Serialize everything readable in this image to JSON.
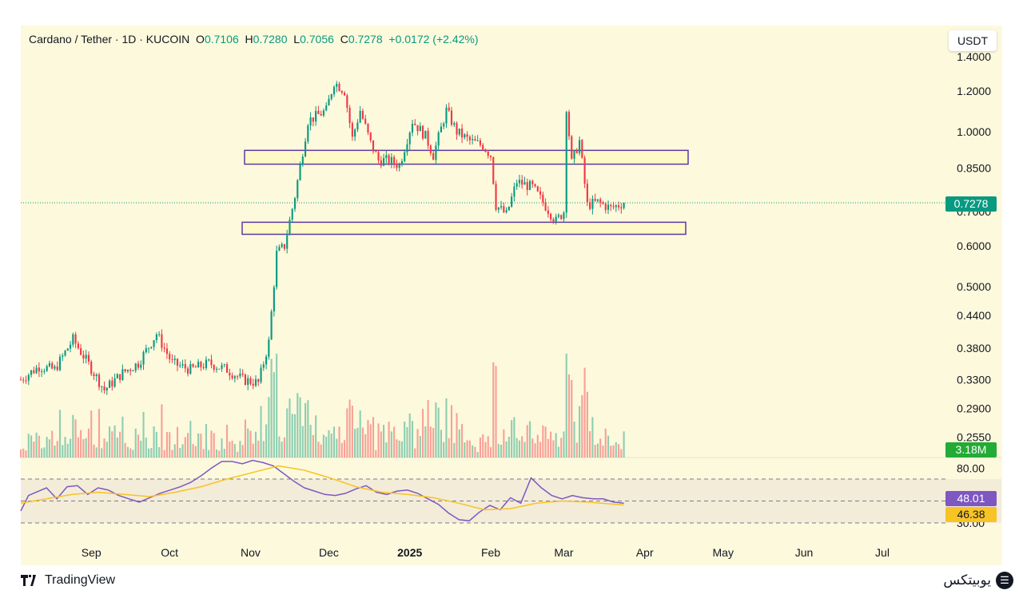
{
  "header": {
    "pair": "Cardano / Tether · 1D · KUCOIN",
    "o_label": "O",
    "o_value": "0.7106",
    "h_label": "H",
    "h_value": "0.7280",
    "l_label": "L",
    "l_value": "0.7056",
    "c_label": "C",
    "c_value": "0.7278",
    "change": "+0.0172 (+2.42%)"
  },
  "unit_button": "USDT",
  "price_label": "0.7278",
  "volume_label": "3.18M",
  "rsi_labels": {
    "rsi": "48.01",
    "ma": "46.38"
  },
  "footer": {
    "tradingview": "TradingView",
    "brand": "یوبیتکس"
  },
  "colors": {
    "up": "#089981",
    "down": "#f23645",
    "rsi": "#7e57c2",
    "rsi_ma": "#f7c325",
    "zone_border": "#5b3aa6",
    "volume_tag": "#22ab35"
  },
  "chart_data": [
    {
      "type": "candlestick",
      "scale": "log",
      "yticks": [
        "1.4000",
        "1.2000",
        "1.0000",
        "0.8500",
        "0.7000",
        "0.6000",
        "0.5000",
        "0.4400",
        "0.3800",
        "0.3300",
        "0.2900",
        "0.2550"
      ],
      "xticks": [
        "Sep",
        "Oct",
        "Nov",
        "Dec",
        "2025",
        "Feb",
        "Mar",
        "Apr",
        "May",
        "Jun",
        "Jul"
      ],
      "last_price": 0.7278,
      "zones": [
        {
          "low": 0.865,
          "high": 0.92
        },
        {
          "low": 0.632,
          "high": 0.667
        }
      ],
      "path": [
        [
          "2024-08-05",
          0.33
        ],
        [
          "2024-08-12",
          0.35
        ],
        [
          "2024-08-18",
          0.345
        ],
        [
          "2024-08-25",
          0.395
        ],
        [
          "2024-08-30",
          0.36
        ],
        [
          "2024-09-06",
          0.315
        ],
        [
          "2024-09-13",
          0.34
        ],
        [
          "2024-09-19",
          0.355
        ],
        [
          "2024-09-26",
          0.405
        ],
        [
          "2024-10-02",
          0.355
        ],
        [
          "2024-10-09",
          0.345
        ],
        [
          "2024-10-16",
          0.355
        ],
        [
          "2024-10-23",
          0.345
        ],
        [
          "2024-10-29",
          0.33
        ],
        [
          "2024-11-04",
          0.325
        ],
        [
          "2024-11-08",
          0.39
        ],
        [
          "2024-11-11",
          0.58
        ],
        [
          "2024-11-14",
          0.6
        ],
        [
          "2024-11-18",
          0.75
        ],
        [
          "2024-11-23",
          1.05
        ],
        [
          "2024-11-30",
          1.1
        ],
        [
          "2024-12-03",
          1.25
        ],
        [
          "2024-12-07",
          1.2
        ],
        [
          "2024-12-10",
          0.97
        ],
        [
          "2024-12-13",
          1.1
        ],
        [
          "2024-12-17",
          0.95
        ],
        [
          "2024-12-20",
          0.88
        ],
        [
          "2024-12-24",
          0.88
        ],
        [
          "2024-12-28",
          0.86
        ],
        [
          "2025-01-02",
          1.05
        ],
        [
          "2025-01-07",
          0.98
        ],
        [
          "2025-01-10",
          0.9
        ],
        [
          "2025-01-15",
          1.1
        ],
        [
          "2025-01-19",
          1.0
        ],
        [
          "2025-01-24",
          0.96
        ],
        [
          "2025-01-29",
          0.94
        ],
        [
          "2025-02-01",
          0.9
        ],
        [
          "2025-02-03",
          0.72
        ],
        [
          "2025-02-07",
          0.69
        ],
        [
          "2025-02-11",
          0.8
        ],
        [
          "2025-02-17",
          0.78
        ],
        [
          "2025-02-21",
          0.73
        ],
        [
          "2025-02-26",
          0.67
        ],
        [
          "2025-03-01",
          0.7
        ],
        [
          "2025-03-02",
          1.12
        ],
        [
          "2025-03-04",
          0.87
        ],
        [
          "2025-03-07",
          0.96
        ],
        [
          "2025-03-10",
          0.72
        ],
        [
          "2025-03-14",
          0.73
        ],
        [
          "2025-03-19",
          0.71
        ],
        [
          "2025-03-24",
          0.7278
        ]
      ]
    },
    {
      "type": "bar",
      "series": [
        {
          "name": "Volume",
          "last_value": "3.18M"
        }
      ]
    },
    {
      "type": "line",
      "yticks": [
        "80.00",
        "30.00"
      ],
      "bands": [
        30,
        50,
        70
      ],
      "series": [
        {
          "values": [
            [
              0,
              41
            ],
            [
              3,
              55
            ],
            [
              7,
              59
            ],
            [
              10,
              62
            ],
            [
              14,
              52
            ],
            [
              18,
              63
            ],
            [
              22,
              64
            ],
            [
              26,
              56
            ],
            [
              30,
              62
            ],
            [
              34,
              60
            ],
            [
              38,
              55
            ],
            [
              42,
              52
            ],
            [
              46,
              49
            ],
            [
              50,
              53
            ],
            [
              54,
              57
            ],
            [
              58,
              60
            ],
            [
              62,
              63
            ],
            [
              66,
              67
            ],
            [
              70,
              73
            ],
            [
              74,
              80
            ],
            [
              78,
              86
            ],
            [
              82,
              86
            ],
            [
              86,
              84
            ],
            [
              90,
              87
            ],
            [
              94,
              85
            ],
            [
              98,
              82
            ],
            [
              102,
              75
            ],
            [
              106,
              68
            ],
            [
              110,
              62
            ],
            [
              114,
              59
            ],
            [
              118,
              56
            ],
            [
              122,
              55
            ],
            [
              126,
              57
            ],
            [
              130,
              61
            ],
            [
              134,
              64
            ],
            [
              138,
              58
            ],
            [
              142,
              56
            ],
            [
              146,
              59
            ],
            [
              150,
              60
            ],
            [
              154,
              57
            ],
            [
              158,
              52
            ],
            [
              162,
              47
            ],
            [
              166,
              39
            ],
            [
              170,
              33
            ],
            [
              174,
              32
            ],
            [
              178,
              40
            ],
            [
              182,
              46
            ],
            [
              186,
              42
            ],
            [
              190,
              53
            ],
            [
              194,
              48
            ],
            [
              198,
              71
            ],
            [
              202,
              62
            ],
            [
              206,
              55
            ],
            [
              210,
              52
            ],
            [
              214,
              55
            ],
            [
              218,
              53
            ],
            [
              222,
              52
            ],
            [
              226,
              52
            ],
            [
              230,
              49
            ],
            [
              234,
              48.01
            ]
          ]
        },
        {
          "values": [
            [
              0,
              48
            ],
            [
              10,
              52
            ],
            [
              20,
              56
            ],
            [
              30,
              58
            ],
            [
              40,
              56
            ],
            [
              50,
              54
            ],
            [
              60,
              58
            ],
            [
              70,
              63
            ],
            [
              80,
              70
            ],
            [
              90,
              76
            ],
            [
              100,
              82
            ],
            [
              110,
              78
            ],
            [
              120,
              71
            ],
            [
              130,
              63
            ],
            [
              140,
              58
            ],
            [
              150,
              56
            ],
            [
              160,
              53
            ],
            [
              170,
              48
            ],
            [
              180,
              42
            ],
            [
              190,
              43
            ],
            [
              200,
              48
            ],
            [
              210,
              50
            ],
            [
              220,
              49
            ],
            [
              234,
              46.38
            ]
          ]
        }
      ]
    }
  ]
}
